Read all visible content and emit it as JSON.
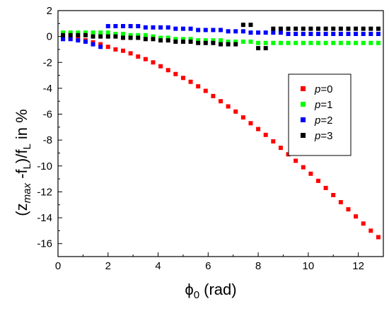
{
  "chart_data": {
    "type": "scatter",
    "xlabel": {
      "symbol": "ϕ",
      "sub": "0",
      "rest": " (rad)"
    },
    "ylabel": {
      "p1": "(z",
      "sub1": "max",
      "p2": " -f",
      "sub2": "L",
      "p3": ")/f",
      "sub3": "L",
      "p4": " in %"
    },
    "xlim": [
      0,
      13
    ],
    "ylim": [
      -17,
      2
    ],
    "x_ticks": [
      0,
      2,
      4,
      6,
      8,
      10,
      12
    ],
    "y_ticks": [
      2,
      0,
      -2,
      -4,
      -6,
      -8,
      -10,
      -12,
      -14,
      -16
    ],
    "grid": false,
    "legend_position": "right",
    "series": [
      {
        "name": "p=0",
        "label_var": "p",
        "label_val": "=0",
        "color": "#ff0000",
        "points": [
          [
            0.2,
            -0.1
          ],
          [
            0.5,
            -0.15
          ],
          [
            0.8,
            -0.2
          ],
          [
            1.1,
            -0.3
          ],
          [
            1.4,
            -0.45
          ],
          [
            1.7,
            -0.6
          ],
          [
            2.0,
            -0.8
          ],
          [
            2.3,
            -1.0
          ],
          [
            2.6,
            -1.1
          ],
          [
            2.9,
            -1.3
          ],
          [
            3.2,
            -1.55
          ],
          [
            3.5,
            -1.75
          ],
          [
            3.8,
            -2.0
          ],
          [
            4.1,
            -2.3
          ],
          [
            4.4,
            -2.6
          ],
          [
            4.7,
            -2.9
          ],
          [
            5.0,
            -3.2
          ],
          [
            5.3,
            -3.5
          ],
          [
            5.6,
            -3.85
          ],
          [
            5.9,
            -4.2
          ],
          [
            6.2,
            -4.6
          ],
          [
            6.5,
            -5.0
          ],
          [
            6.8,
            -5.4
          ],
          [
            7.1,
            -5.8
          ],
          [
            7.4,
            -6.25
          ],
          [
            7.7,
            -6.7
          ],
          [
            8.0,
            -7.15
          ],
          [
            8.3,
            -7.6
          ],
          [
            8.6,
            -8.1
          ],
          [
            8.9,
            -8.6
          ],
          [
            9.2,
            -9.1
          ],
          [
            9.5,
            -9.6
          ],
          [
            9.8,
            -10.1
          ],
          [
            10.1,
            -10.6
          ],
          [
            10.4,
            -11.15
          ],
          [
            10.7,
            -11.7
          ],
          [
            11.0,
            -12.25
          ],
          [
            11.3,
            -12.8
          ],
          [
            11.6,
            -13.35
          ],
          [
            11.9,
            -13.9
          ],
          [
            12.2,
            -14.45
          ],
          [
            12.5,
            -15.0
          ],
          [
            12.8,
            -15.5
          ]
        ]
      },
      {
        "name": "p=1",
        "label_var": "p",
        "label_val": "=1",
        "color": "#00ff00",
        "points": [
          [
            0.2,
            0.3
          ],
          [
            0.5,
            0.3
          ],
          [
            0.8,
            0.3
          ],
          [
            1.1,
            0.3
          ],
          [
            1.4,
            0.3
          ],
          [
            1.7,
            0.3
          ],
          [
            2.0,
            0.3
          ],
          [
            2.3,
            0.2
          ],
          [
            2.6,
            0.2
          ],
          [
            2.9,
            0.1
          ],
          [
            3.2,
            0.1
          ],
          [
            3.5,
            0.1
          ],
          [
            3.8,
            0.0
          ],
          [
            4.1,
            -0.1
          ],
          [
            4.4,
            -0.1
          ],
          [
            4.7,
            -0.2
          ],
          [
            5.0,
            -0.2
          ],
          [
            5.3,
            -0.2
          ],
          [
            5.6,
            -0.3
          ],
          [
            5.9,
            -0.3
          ],
          [
            6.2,
            -0.3
          ],
          [
            6.5,
            -0.3
          ],
          [
            6.8,
            -0.4
          ],
          [
            7.1,
            -0.4
          ],
          [
            7.4,
            -0.4
          ],
          [
            7.7,
            -0.4
          ],
          [
            8.0,
            -0.5
          ],
          [
            8.3,
            -0.5
          ],
          [
            8.6,
            -0.5
          ],
          [
            8.9,
            -0.5
          ],
          [
            9.2,
            -0.5
          ],
          [
            9.5,
            -0.5
          ],
          [
            9.8,
            -0.5
          ],
          [
            10.1,
            -0.5
          ],
          [
            10.4,
            -0.5
          ],
          [
            10.7,
            -0.5
          ],
          [
            11.0,
            -0.5
          ],
          [
            11.3,
            -0.5
          ],
          [
            11.6,
            -0.5
          ],
          [
            11.9,
            -0.5
          ],
          [
            12.2,
            -0.5
          ],
          [
            12.5,
            -0.5
          ],
          [
            12.8,
            -0.5
          ]
        ]
      },
      {
        "name": "p=2",
        "label_var": "p",
        "label_val": "=2",
        "color": "#0000ff",
        "points": [
          [
            0.2,
            -0.2
          ],
          [
            0.5,
            -0.2
          ],
          [
            0.8,
            -0.3
          ],
          [
            1.1,
            -0.4
          ],
          [
            1.4,
            -0.6
          ],
          [
            1.7,
            -0.8
          ],
          [
            2.0,
            0.8
          ],
          [
            2.3,
            0.8
          ],
          [
            2.6,
            0.8
          ],
          [
            2.9,
            0.8
          ],
          [
            3.2,
            0.8
          ],
          [
            3.5,
            0.7
          ],
          [
            3.8,
            0.7
          ],
          [
            4.1,
            0.7
          ],
          [
            4.4,
            0.7
          ],
          [
            4.7,
            0.6
          ],
          [
            5.0,
            0.6
          ],
          [
            5.3,
            0.6
          ],
          [
            5.6,
            0.5
          ],
          [
            5.9,
            0.5
          ],
          [
            6.2,
            0.5
          ],
          [
            6.5,
            0.5
          ],
          [
            6.8,
            0.4
          ],
          [
            7.1,
            0.4
          ],
          [
            7.4,
            0.4
          ],
          [
            7.7,
            0.3
          ],
          [
            8.0,
            0.3
          ],
          [
            8.3,
            0.3
          ],
          [
            8.6,
            0.3
          ],
          [
            8.9,
            0.3
          ],
          [
            9.2,
            0.2
          ],
          [
            9.5,
            0.2
          ],
          [
            9.8,
            0.2
          ],
          [
            10.1,
            0.2
          ],
          [
            10.4,
            0.2
          ],
          [
            10.7,
            0.2
          ],
          [
            11.0,
            0.2
          ],
          [
            11.3,
            0.2
          ],
          [
            11.6,
            0.2
          ],
          [
            11.9,
            0.2
          ],
          [
            12.2,
            0.2
          ],
          [
            12.5,
            0.2
          ],
          [
            12.8,
            0.2
          ]
        ]
      },
      {
        "name": "p=3",
        "label_var": "p",
        "label_val": "=3",
        "color": "#000000",
        "points": [
          [
            0.2,
            0.1
          ],
          [
            0.5,
            0.1
          ],
          [
            0.8,
            0.1
          ],
          [
            1.1,
            0.1
          ],
          [
            1.4,
            0.0
          ],
          [
            1.7,
            0.0
          ],
          [
            2.0,
            0.0
          ],
          [
            2.3,
            0.0
          ],
          [
            2.6,
            -0.1
          ],
          [
            2.9,
            -0.1
          ],
          [
            3.2,
            -0.1
          ],
          [
            3.5,
            -0.2
          ],
          [
            3.8,
            -0.2
          ],
          [
            4.1,
            -0.3
          ],
          [
            4.4,
            -0.3
          ],
          [
            4.7,
            -0.4
          ],
          [
            5.0,
            -0.4
          ],
          [
            5.3,
            -0.4
          ],
          [
            5.6,
            -0.5
          ],
          [
            5.9,
            -0.5
          ],
          [
            6.2,
            -0.5
          ],
          [
            6.5,
            -0.6
          ],
          [
            6.8,
            -0.6
          ],
          [
            7.1,
            -0.6
          ],
          [
            7.4,
            0.9
          ],
          [
            7.7,
            0.9
          ],
          [
            8.0,
            -0.9
          ],
          [
            8.3,
            -0.9
          ],
          [
            8.6,
            0.6
          ],
          [
            8.9,
            0.6
          ],
          [
            9.2,
            0.6
          ],
          [
            9.5,
            0.6
          ],
          [
            9.8,
            0.6
          ],
          [
            10.1,
            0.6
          ],
          [
            10.4,
            0.6
          ],
          [
            10.7,
            0.6
          ],
          [
            11.0,
            0.6
          ],
          [
            11.3,
            0.6
          ],
          [
            11.6,
            0.6
          ],
          [
            11.9,
            0.6
          ],
          [
            12.2,
            0.6
          ],
          [
            12.5,
            0.6
          ],
          [
            12.8,
            0.6
          ]
        ]
      }
    ]
  }
}
